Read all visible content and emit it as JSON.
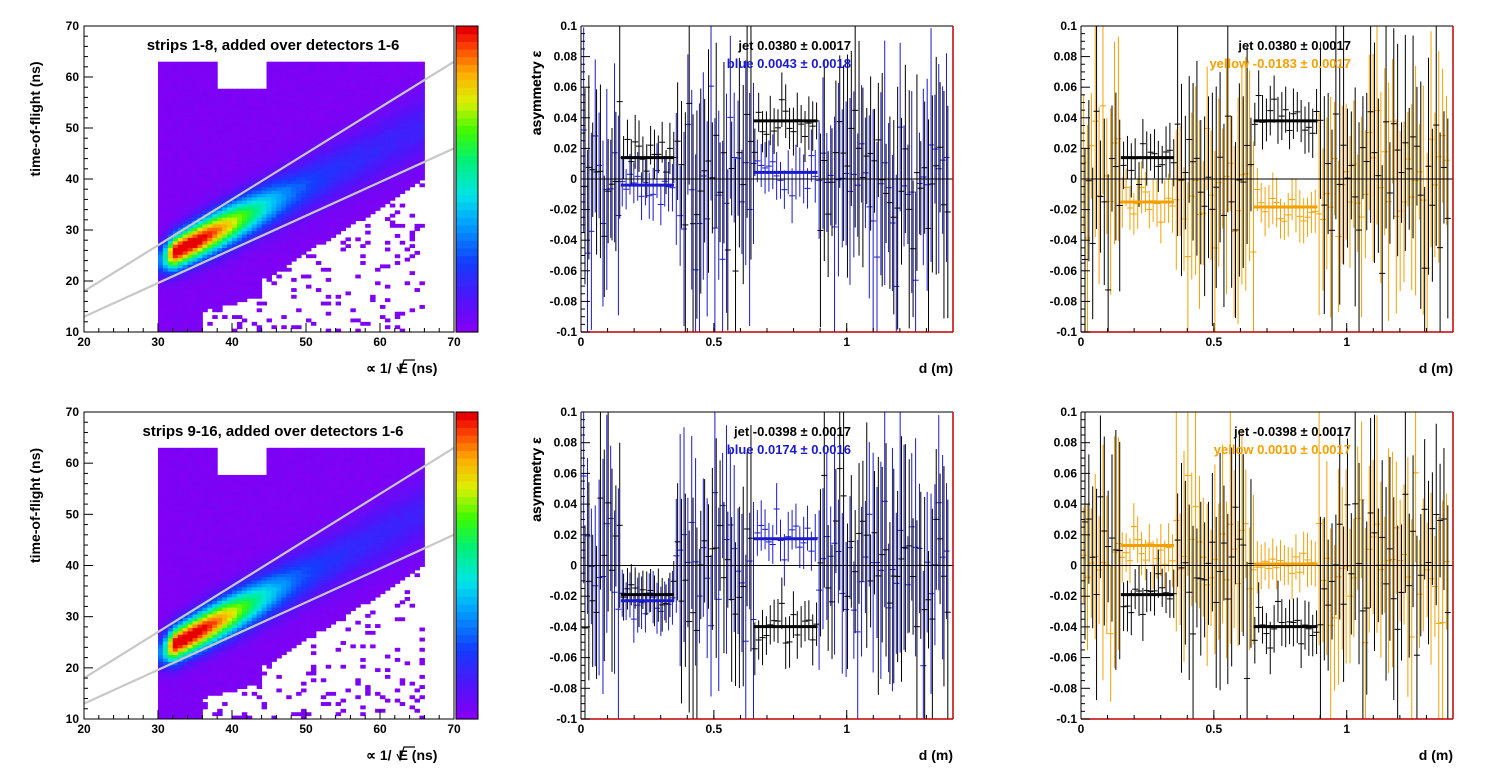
{
  "chart_data": [
    {
      "type": "heatmap",
      "panel": "top-left",
      "annotation": "strips 1-8, added over detectors 1-6",
      "ylabel": "time-of-flight (ns)",
      "xlabel_prefix": "∝ 1/",
      "xlabel_root": "E",
      "xlabel_suffix": " (ns)",
      "xlim": [
        20,
        70
      ],
      "ylim": [
        10,
        70
      ],
      "xticks": [
        20,
        30,
        40,
        50,
        60,
        70
      ],
      "yticks": [
        10,
        20,
        30,
        40,
        50,
        60,
        70
      ],
      "colorbar": true,
      "data_region": {
        "x": [
          30,
          66
        ],
        "y": [
          10,
          63
        ]
      },
      "ridge": {
        "peak": [
          34,
          27
        ],
        "end": [
          64,
          49
        ]
      },
      "cut_lines": [
        {
          "x": [
            20,
            70
          ],
          "y": [
            18,
            63
          ]
        },
        {
          "x": [
            20,
            70
          ],
          "y": [
            13,
            46
          ]
        }
      ]
    },
    {
      "type": "scatter",
      "panel": "top-middle",
      "ylabel": "asymmetry ε",
      "xlabel": "d (m)",
      "xlim": [
        0,
        1.4
      ],
      "ylim": [
        -0.1,
        0.1
      ],
      "xticks": [
        0,
        0.5,
        1
      ],
      "yticks": [
        -0.1,
        -0.08,
        -0.06,
        -0.04,
        -0.02,
        0,
        0.02,
        0.04,
        0.06,
        0.08,
        0.1
      ],
      "legend": [
        {
          "text": "jet  0.0380 ± 0.0017",
          "color": "#000000"
        },
        {
          "text": "blue  0.0043 ± 0.0018",
          "color": "#1a1acc"
        }
      ],
      "series": [
        {
          "name": "jet",
          "color": "#000000",
          "fits": [
            {
              "x": [
                0.15,
                0.35
              ],
              "y": 0.014
            },
            {
              "x": [
                0.65,
                0.89
              ],
              "y": 0.038
            }
          ]
        },
        {
          "name": "blue",
          "color": "#1a1acc",
          "fits": [
            {
              "x": [
                0.15,
                0.35
              ],
              "y": -0.004
            },
            {
              "x": [
                0.65,
                0.89
              ],
              "y": 0.0043
            }
          ]
        }
      ]
    },
    {
      "type": "scatter",
      "panel": "top-right",
      "ylabel": "asymmetry ε",
      "xlabel": "d (m)",
      "xlim": [
        0,
        1.4
      ],
      "ylim": [
        -0.1,
        0.1
      ],
      "xticks": [
        0,
        0.5,
        1
      ],
      "yticks": [
        -0.1,
        -0.08,
        -0.06,
        -0.04,
        -0.02,
        0,
        0.02,
        0.04,
        0.06,
        0.08,
        0.1
      ],
      "legend": [
        {
          "text": "jet  0.0380 ± 0.0017",
          "color": "#000000"
        },
        {
          "text": "yellow  -0.0183 ± 0.0017",
          "color": "#f5a000"
        }
      ],
      "series": [
        {
          "name": "jet",
          "color": "#000000",
          "fits": [
            {
              "x": [
                0.15,
                0.35
              ],
              "y": 0.014
            },
            {
              "x": [
                0.65,
                0.89
              ],
              "y": 0.038
            }
          ]
        },
        {
          "name": "yellow",
          "color": "#f5a000",
          "fits": [
            {
              "x": [
                0.15,
                0.35
              ],
              "y": -0.015
            },
            {
              "x": [
                0.65,
                0.89
              ],
              "y": -0.0183
            }
          ]
        }
      ]
    },
    {
      "type": "heatmap",
      "panel": "bottom-left",
      "annotation": "strips 9-16, added over detectors 1-6",
      "ylabel": "time-of-flight (ns)",
      "xlabel_prefix": "∝ 1/",
      "xlabel_root": "E",
      "xlabel_suffix": " (ns)",
      "xlim": [
        20,
        70
      ],
      "ylim": [
        10,
        70
      ],
      "xticks": [
        20,
        30,
        40,
        50,
        60,
        70
      ],
      "yticks": [
        10,
        20,
        30,
        40,
        50,
        60,
        70
      ],
      "colorbar": true,
      "data_region": {
        "x": [
          30,
          66
        ],
        "y": [
          10,
          63
        ]
      },
      "ridge": {
        "peak": [
          34,
          26
        ],
        "end": [
          64,
          49
        ]
      },
      "cut_lines": [
        {
          "x": [
            20,
            70
          ],
          "y": [
            18,
            63
          ]
        },
        {
          "x": [
            20,
            70
          ],
          "y": [
            13,
            46
          ]
        }
      ]
    },
    {
      "type": "scatter",
      "panel": "bottom-middle",
      "ylabel": "asymmetry ε",
      "xlabel": "d (m)",
      "xlim": [
        0,
        1.4
      ],
      "ylim": [
        -0.1,
        0.1
      ],
      "xticks": [
        0,
        0.5,
        1
      ],
      "yticks": [
        -0.1,
        -0.08,
        -0.06,
        -0.04,
        -0.02,
        0,
        0.02,
        0.04,
        0.06,
        0.08,
        0.1
      ],
      "legend": [
        {
          "text": "jet -0.0398 ± 0.0017",
          "color": "#000000"
        },
        {
          "text": "blue  0.0174 ± 0.0016",
          "color": "#1a1acc"
        }
      ],
      "series": [
        {
          "name": "jet",
          "color": "#000000",
          "fits": [
            {
              "x": [
                0.15,
                0.35
              ],
              "y": -0.019
            },
            {
              "x": [
                0.65,
                0.89
              ],
              "y": -0.0398
            }
          ]
        },
        {
          "name": "blue",
          "color": "#1a1acc",
          "fits": [
            {
              "x": [
                0.15,
                0.35
              ],
              "y": -0.023
            },
            {
              "x": [
                0.65,
                0.89
              ],
              "y": 0.0174
            }
          ]
        }
      ]
    },
    {
      "type": "scatter",
      "panel": "bottom-right",
      "ylabel": "asymmetry ε",
      "xlabel": "d (m)",
      "xlim": [
        0,
        1.4
      ],
      "ylim": [
        -0.1,
        0.1
      ],
      "xticks": [
        0,
        0.5,
        1
      ],
      "yticks": [
        -0.1,
        -0.08,
        -0.06,
        -0.04,
        -0.02,
        0,
        0.02,
        0.04,
        0.06,
        0.08,
        0.1
      ],
      "legend": [
        {
          "text": "jet -0.0398 ± 0.0017",
          "color": "#000000"
        },
        {
          "text": "yellow  0.0010 ± 0.0017",
          "color": "#f5a000"
        }
      ],
      "series": [
        {
          "name": "jet",
          "color": "#000000",
          "fits": [
            {
              "x": [
                0.15,
                0.35
              ],
              "y": -0.019
            },
            {
              "x": [
                0.65,
                0.89
              ],
              "y": -0.0398
            }
          ]
        },
        {
          "name": "yellow",
          "color": "#f5a000",
          "fits": [
            {
              "x": [
                0.15,
                0.35
              ],
              "y": 0.013
            },
            {
              "x": [
                0.65,
                0.89
              ],
              "y": 0.001
            }
          ]
        }
      ]
    }
  ]
}
